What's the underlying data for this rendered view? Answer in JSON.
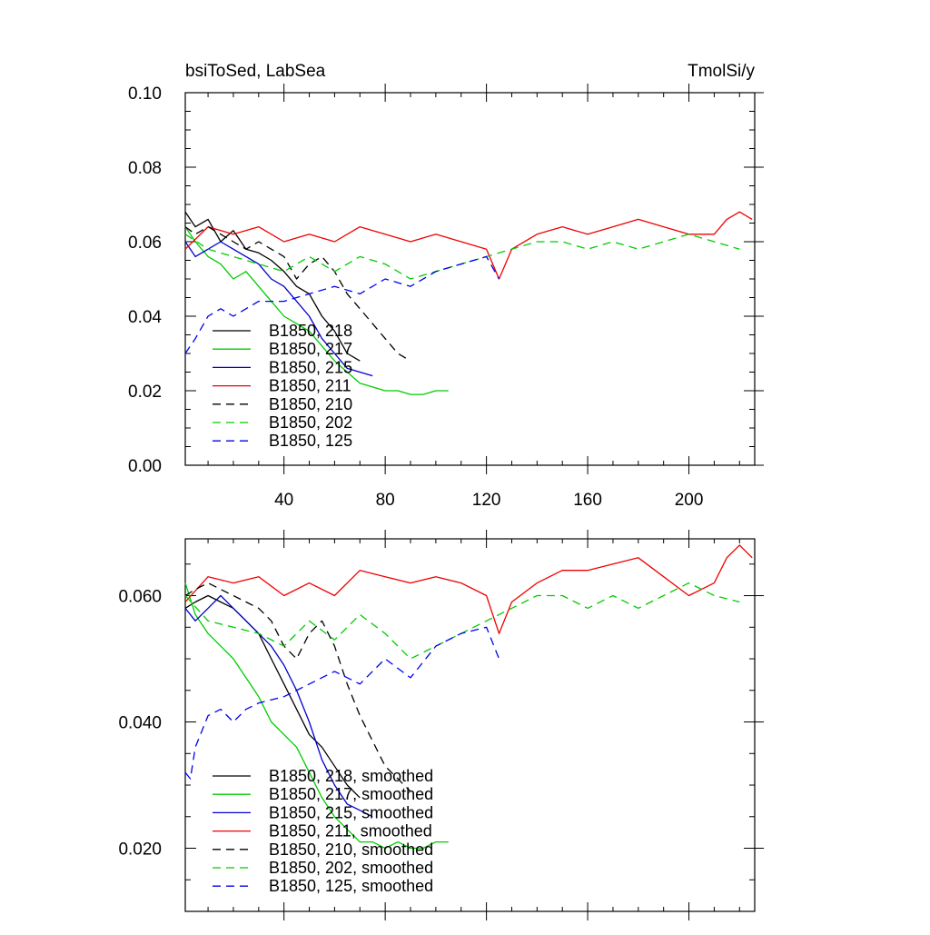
{
  "chart_data": [
    {
      "type": "line",
      "title": "bsiToSed, LabSea",
      "units": "TmolSi/y",
      "xlabel": "",
      "ylabel": "",
      "xlim": [
        1,
        226
      ],
      "ylim": [
        0.0,
        0.1
      ],
      "xticks": [
        40,
        80,
        120,
        160,
        200
      ],
      "xtick_labels": [
        "40",
        "80",
        "120",
        "160",
        "200"
      ],
      "yticks": [
        0.0,
        0.02,
        0.04,
        0.06,
        0.08,
        0.1
      ],
      "ytick_labels": [
        "0.00",
        "0.02",
        "0.04",
        "0.06",
        "0.08",
        "0.10"
      ],
      "legend_position": "bottom-left",
      "series": [
        {
          "name": "B1850, 218",
          "color": "#000000",
          "dash": "solid",
          "x": [
            1,
            5,
            10,
            15,
            20,
            25,
            30,
            35,
            40,
            45,
            50,
            55,
            60,
            65,
            70
          ],
          "y": [
            0.068,
            0.064,
            0.066,
            0.06,
            0.063,
            0.058,
            0.057,
            0.055,
            0.052,
            0.048,
            0.046,
            0.04,
            0.036,
            0.03,
            0.028
          ]
        },
        {
          "name": "B1850, 217",
          "color": "#00cc00",
          "dash": "solid",
          "x": [
            1,
            5,
            10,
            15,
            20,
            25,
            30,
            35,
            40,
            45,
            50,
            55,
            60,
            65,
            70,
            75,
            80,
            85,
            90,
            95,
            100,
            105
          ],
          "y": [
            0.064,
            0.06,
            0.056,
            0.054,
            0.05,
            0.052,
            0.048,
            0.044,
            0.04,
            0.038,
            0.036,
            0.032,
            0.028,
            0.025,
            0.022,
            0.021,
            0.02,
            0.02,
            0.019,
            0.019,
            0.02,
            0.02
          ]
        },
        {
          "name": "B1850, 215",
          "color": "#0000cc",
          "dash": "solid",
          "x": [
            1,
            5,
            10,
            15,
            20,
            25,
            30,
            35,
            40,
            45,
            50,
            55,
            60,
            65,
            70,
            75
          ],
          "y": [
            0.06,
            0.056,
            0.058,
            0.06,
            0.058,
            0.056,
            0.054,
            0.05,
            0.048,
            0.044,
            0.04,
            0.034,
            0.03,
            0.026,
            0.025,
            0.024
          ]
        },
        {
          "name": "B1850, 211",
          "color": "#ee0000",
          "dash": "solid",
          "x": [
            1,
            10,
            20,
            30,
            40,
            50,
            60,
            70,
            80,
            90,
            100,
            110,
            120,
            125,
            130,
            140,
            150,
            160,
            170,
            180,
            190,
            200,
            210,
            215,
            220,
            225
          ],
          "y": [
            0.058,
            0.064,
            0.062,
            0.064,
            0.06,
            0.062,
            0.06,
            0.064,
            0.062,
            0.06,
            0.062,
            0.06,
            0.058,
            0.05,
            0.058,
            0.062,
            0.064,
            0.062,
            0.064,
            0.066,
            0.064,
            0.062,
            0.062,
            0.066,
            0.068,
            0.066
          ]
        },
        {
          "name": "B1850, 210",
          "color": "#000000",
          "dash": "dashed",
          "x": [
            1,
            5,
            10,
            15,
            20,
            25,
            30,
            35,
            40,
            45,
            50,
            55,
            60,
            65,
            70,
            75,
            80,
            85,
            90
          ],
          "y": [
            0.064,
            0.062,
            0.064,
            0.062,
            0.06,
            0.058,
            0.06,
            0.058,
            0.056,
            0.05,
            0.054,
            0.056,
            0.052,
            0.046,
            0.042,
            0.038,
            0.034,
            0.03,
            0.028
          ]
        },
        {
          "name": "B1850, 202",
          "color": "#00cc00",
          "dash": "dashed",
          "x": [
            1,
            10,
            20,
            30,
            40,
            50,
            60,
            70,
            80,
            90,
            100,
            110,
            120,
            130,
            140,
            150,
            160,
            170,
            180,
            190,
            200,
            210,
            220
          ],
          "y": [
            0.062,
            0.058,
            0.056,
            0.054,
            0.052,
            0.056,
            0.052,
            0.056,
            0.054,
            0.05,
            0.052,
            0.054,
            0.056,
            0.058,
            0.06,
            0.06,
            0.058,
            0.06,
            0.058,
            0.06,
            0.062,
            0.06,
            0.058
          ]
        },
        {
          "name": "B1850, 125",
          "color": "#0000ee",
          "dash": "dashed",
          "x": [
            1,
            5,
            10,
            15,
            20,
            25,
            30,
            40,
            50,
            60,
            70,
            80,
            90,
            100,
            110,
            120,
            125
          ],
          "y": [
            0.03,
            0.034,
            0.04,
            0.042,
            0.04,
            0.042,
            0.044,
            0.044,
            0.046,
            0.048,
            0.046,
            0.05,
            0.048,
            0.052,
            0.054,
            0.056,
            0.05
          ]
        }
      ]
    },
    {
      "type": "line",
      "title": "",
      "xlabel": "",
      "ylabel": "",
      "xlim": [
        1,
        226
      ],
      "ylim": [
        0.01,
        0.069
      ],
      "yticks": [
        0.02,
        0.04,
        0.06
      ],
      "ytick_labels": [
        "0.020",
        "0.040",
        "0.060"
      ],
      "legend_position": "bottom-left",
      "series": [
        {
          "name": "B1850, 218, smoothed",
          "color": "#000000",
          "dash": "solid",
          "x": [
            1,
            5,
            10,
            15,
            20,
            25,
            30,
            35,
            40,
            45,
            50,
            55,
            60,
            65,
            70
          ],
          "y": [
            0.058,
            0.059,
            0.06,
            0.059,
            0.058,
            0.056,
            0.054,
            0.05,
            0.046,
            0.042,
            0.038,
            0.036,
            0.033,
            0.03,
            0.028
          ]
        },
        {
          "name": "B1850, 217, smoothed",
          "color": "#00cc00",
          "dash": "solid",
          "x": [
            1,
            5,
            10,
            15,
            20,
            25,
            30,
            35,
            40,
            45,
            50,
            55,
            60,
            65,
            70,
            75,
            80,
            85,
            90,
            95,
            100,
            105
          ],
          "y": [
            0.062,
            0.057,
            0.054,
            0.052,
            0.05,
            0.047,
            0.044,
            0.04,
            0.038,
            0.036,
            0.032,
            0.028,
            0.025,
            0.023,
            0.021,
            0.021,
            0.02,
            0.021,
            0.02,
            0.02,
            0.021,
            0.021
          ]
        },
        {
          "name": "B1850, 215, smoothed",
          "color": "#0000cc",
          "dash": "solid",
          "x": [
            1,
            5,
            10,
            15,
            20,
            25,
            30,
            35,
            40,
            45,
            50,
            55,
            60,
            65,
            70,
            75
          ],
          "y": [
            0.058,
            0.056,
            0.058,
            0.06,
            0.058,
            0.056,
            0.054,
            0.052,
            0.049,
            0.045,
            0.04,
            0.034,
            0.03,
            0.027,
            0.026,
            0.025
          ]
        },
        {
          "name": "B1850, 211, smoothed",
          "color": "#ee0000",
          "dash": "solid",
          "x": [
            1,
            10,
            20,
            30,
            40,
            50,
            60,
            70,
            80,
            90,
            100,
            110,
            120,
            125,
            130,
            140,
            150,
            160,
            170,
            180,
            190,
            200,
            210,
            215,
            220,
            225
          ],
          "y": [
            0.059,
            0.063,
            0.062,
            0.063,
            0.06,
            0.062,
            0.06,
            0.064,
            0.063,
            0.062,
            0.063,
            0.062,
            0.06,
            0.054,
            0.059,
            0.062,
            0.064,
            0.064,
            0.065,
            0.066,
            0.063,
            0.06,
            0.062,
            0.066,
            0.068,
            0.066
          ]
        },
        {
          "name": "B1850, 210, smoothed",
          "color": "#000000",
          "dash": "dashed",
          "x": [
            1,
            5,
            10,
            15,
            20,
            25,
            30,
            35,
            40,
            45,
            50,
            55,
            60,
            65,
            70,
            75,
            80,
            85,
            90
          ],
          "y": [
            0.06,
            0.061,
            0.062,
            0.061,
            0.06,
            0.059,
            0.058,
            0.056,
            0.052,
            0.05,
            0.054,
            0.056,
            0.052,
            0.046,
            0.041,
            0.037,
            0.033,
            0.031,
            0.029
          ]
        },
        {
          "name": "B1850, 202, smoothed",
          "color": "#00cc00",
          "dash": "dashed",
          "x": [
            1,
            10,
            20,
            30,
            40,
            50,
            60,
            70,
            80,
            90,
            100,
            110,
            120,
            130,
            140,
            150,
            160,
            170,
            180,
            190,
            200,
            210,
            220
          ],
          "y": [
            0.06,
            0.056,
            0.055,
            0.054,
            0.052,
            0.056,
            0.053,
            0.057,
            0.054,
            0.05,
            0.052,
            0.054,
            0.056,
            0.058,
            0.06,
            0.06,
            0.058,
            0.06,
            0.058,
            0.06,
            0.062,
            0.06,
            0.059
          ]
        },
        {
          "name": "B1850, 125, smoothed",
          "color": "#0000ee",
          "dash": "dashed",
          "x": [
            1,
            3,
            5,
            10,
            15,
            20,
            25,
            30,
            40,
            50,
            60,
            70,
            80,
            90,
            100,
            110,
            120,
            125
          ],
          "y": [
            0.032,
            0.031,
            0.036,
            0.041,
            0.042,
            0.04,
            0.042,
            0.043,
            0.044,
            0.046,
            0.048,
            0.046,
            0.05,
            0.047,
            0.052,
            0.054,
            0.055,
            0.05
          ]
        }
      ]
    }
  ]
}
